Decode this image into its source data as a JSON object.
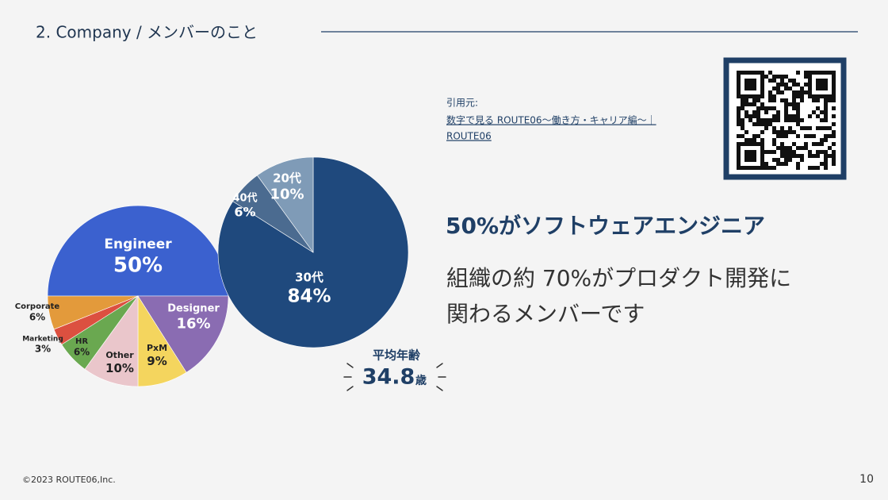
{
  "header": {
    "title": "2. Company / メンバーのこと"
  },
  "citation": {
    "label": "引用元:",
    "link_lines": [
      "数字で見る ROUTE06〜働き方・キャリア編〜｜",
      "ROUTE06"
    ]
  },
  "headline": "50%がソフトウェアエンジニア",
  "body_lines": [
    "組織の約 70%がプロダクト開発に",
    "関わるメンバーです"
  ],
  "footer": {
    "copyright": "©2023 ROUTE06,Inc.",
    "page": "10"
  },
  "chart_data": [
    {
      "type": "pie",
      "categories": [
        "Engineer",
        "Designer",
        "PxM",
        "Other",
        "HR",
        "Marketing",
        "Corporate"
      ],
      "values": [
        50,
        16,
        9,
        10,
        6,
        3,
        6
      ],
      "value_labels": [
        "50%",
        "16%",
        "9%",
        "10%",
        "6%",
        "3%",
        "6%"
      ],
      "colors": [
        "#3b61cf",
        "#8a6cb2",
        "#f4d55e",
        "#eac6cb",
        "#6aa850",
        "#dc5040",
        "#e39a3b"
      ]
    },
    {
      "type": "pie",
      "categories": [
        "30代",
        "40代",
        "20代"
      ],
      "values": [
        84,
        6,
        10
      ],
      "value_labels": [
        "84%",
        "6%",
        "10%"
      ],
      "colors": [
        "#1f497d",
        "#4b6b90",
        "#7f9bb7"
      ],
      "annotation": {
        "label": "平均年齢",
        "value": 34.8,
        "unit": "歳"
      }
    }
  ]
}
